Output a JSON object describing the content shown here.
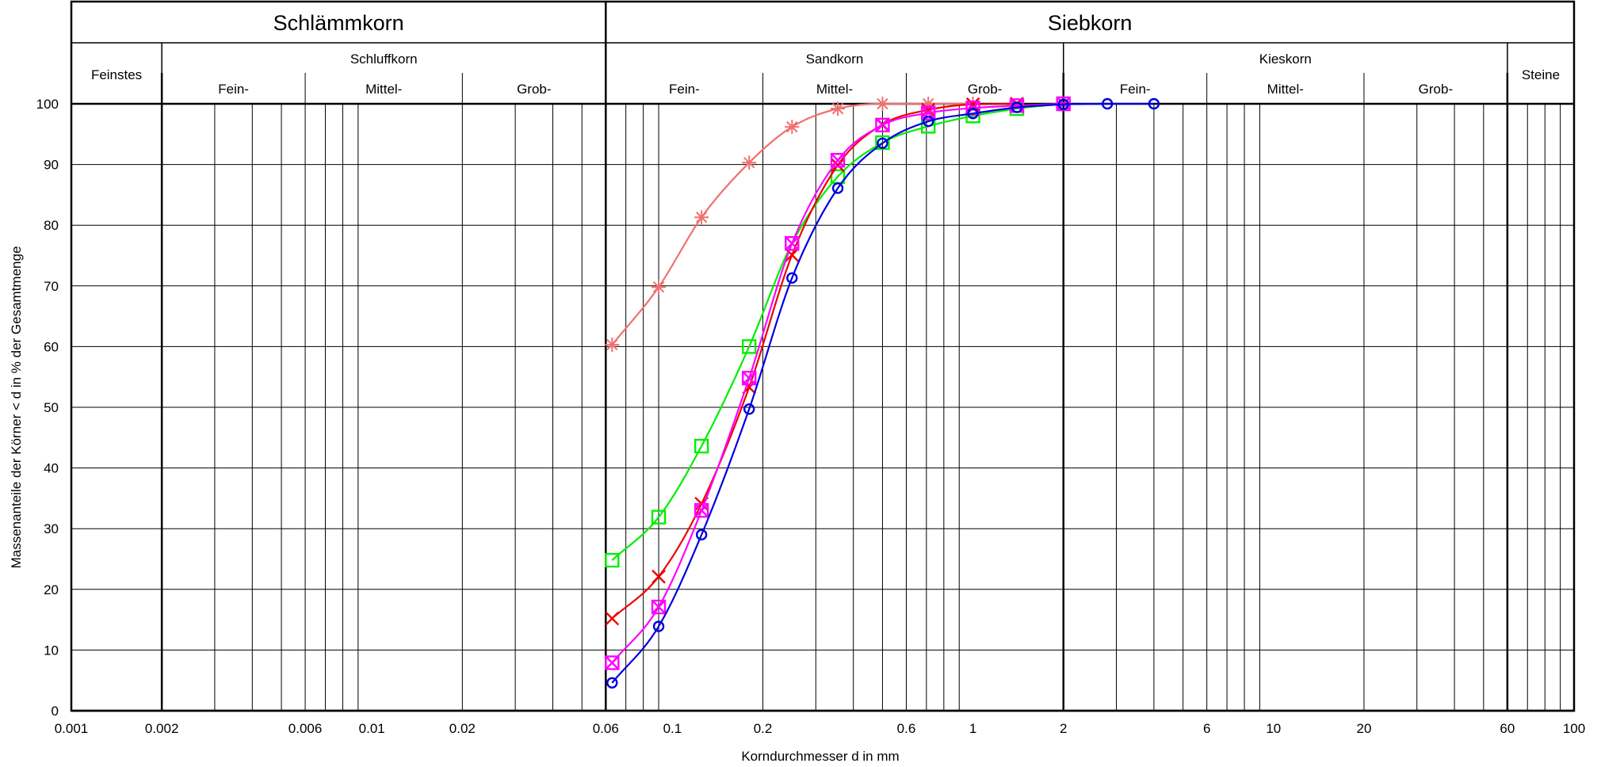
{
  "header": {
    "top": [
      "Schlämmkorn",
      "Siebkorn"
    ],
    "groups": [
      "Feinstes",
      "Schluffkorn",
      "Sandkorn",
      "Kieskorn",
      "Steine"
    ],
    "subgroups": [
      "Fein-",
      "Mittel-",
      "Grob-",
      "Fein-",
      "Mittel-",
      "Grob-",
      "Fein-",
      "Mittel-",
      "Grob-"
    ]
  },
  "chart_data": {
    "type": "line",
    "title": "",
    "xlabel": "Korndurchmesser d in mm",
    "ylabel": "Massenanteile der Körner < d in % der Gesamtmenge",
    "xscale": "log",
    "xlim": [
      0.001,
      100
    ],
    "ylim": [
      0,
      100
    ],
    "grid": true,
    "x_tick_labels": [
      "0.001",
      "0.002",
      "0.006",
      "0.01",
      "0.02",
      "0.06",
      "0.1",
      "0.2",
      "0.6",
      "1",
      "2",
      "6",
      "10",
      "20",
      "60",
      "100"
    ],
    "y_tick_labels": [
      "0",
      "10",
      "20",
      "30",
      "40",
      "50",
      "60",
      "70",
      "80",
      "90",
      "100"
    ],
    "series": [
      {
        "color": "#f07070",
        "marker": "asterisk",
        "points": [
          [
            0.063,
            60.3
          ],
          [
            0.09,
            69.8
          ],
          [
            0.125,
            81.3
          ],
          [
            0.18,
            90.3
          ],
          [
            0.25,
            96.2
          ],
          [
            0.355,
            99.2
          ],
          [
            0.5,
            100.0
          ],
          [
            0.71,
            100.0
          ],
          [
            1.0,
            100.0
          ]
        ]
      },
      {
        "color": "#00ee00",
        "marker": "square",
        "points": [
          [
            0.063,
            24.8
          ],
          [
            0.09,
            31.9
          ],
          [
            0.125,
            43.6
          ],
          [
            0.18,
            60.0
          ],
          [
            0.25,
            77.0
          ],
          [
            0.355,
            88.0
          ],
          [
            0.5,
            93.6
          ],
          [
            0.71,
            96.3
          ],
          [
            1.0,
            98.0
          ],
          [
            1.4,
            99.2
          ],
          [
            2.0,
            100.0
          ]
        ]
      },
      {
        "color": "#ee0000",
        "marker": "x",
        "points": [
          [
            0.063,
            15.2
          ],
          [
            0.09,
            22.1
          ],
          [
            0.125,
            34.1
          ],
          [
            0.18,
            53.3
          ],
          [
            0.25,
            75.1
          ],
          [
            0.355,
            89.9
          ],
          [
            0.5,
            96.6
          ],
          [
            0.71,
            99.0
          ],
          [
            1.0,
            99.9
          ],
          [
            1.4,
            100.0
          ]
        ]
      },
      {
        "color": "#ff00ff",
        "marker": "boxed-x",
        "points": [
          [
            0.063,
            7.9
          ],
          [
            0.09,
            17.1
          ],
          [
            0.125,
            33.0
          ],
          [
            0.18,
            54.8
          ],
          [
            0.25,
            77.0
          ],
          [
            0.355,
            90.7
          ],
          [
            0.5,
            96.5
          ],
          [
            0.71,
            98.5
          ],
          [
            1.0,
            99.3
          ],
          [
            1.4,
            99.7
          ],
          [
            2.0,
            100.0
          ]
        ]
      },
      {
        "color": "#0000dd",
        "marker": "circle",
        "points": [
          [
            0.063,
            4.6
          ],
          [
            0.09,
            13.9
          ],
          [
            0.125,
            29.0
          ],
          [
            0.18,
            49.7
          ],
          [
            0.25,
            71.3
          ],
          [
            0.355,
            86.1
          ],
          [
            0.5,
            93.5
          ],
          [
            0.71,
            97.1
          ],
          [
            1.0,
            98.4
          ],
          [
            1.4,
            99.4
          ],
          [
            2.0,
            99.9
          ],
          [
            2.8,
            100.0
          ],
          [
            4.0,
            100.0
          ]
        ]
      }
    ]
  }
}
